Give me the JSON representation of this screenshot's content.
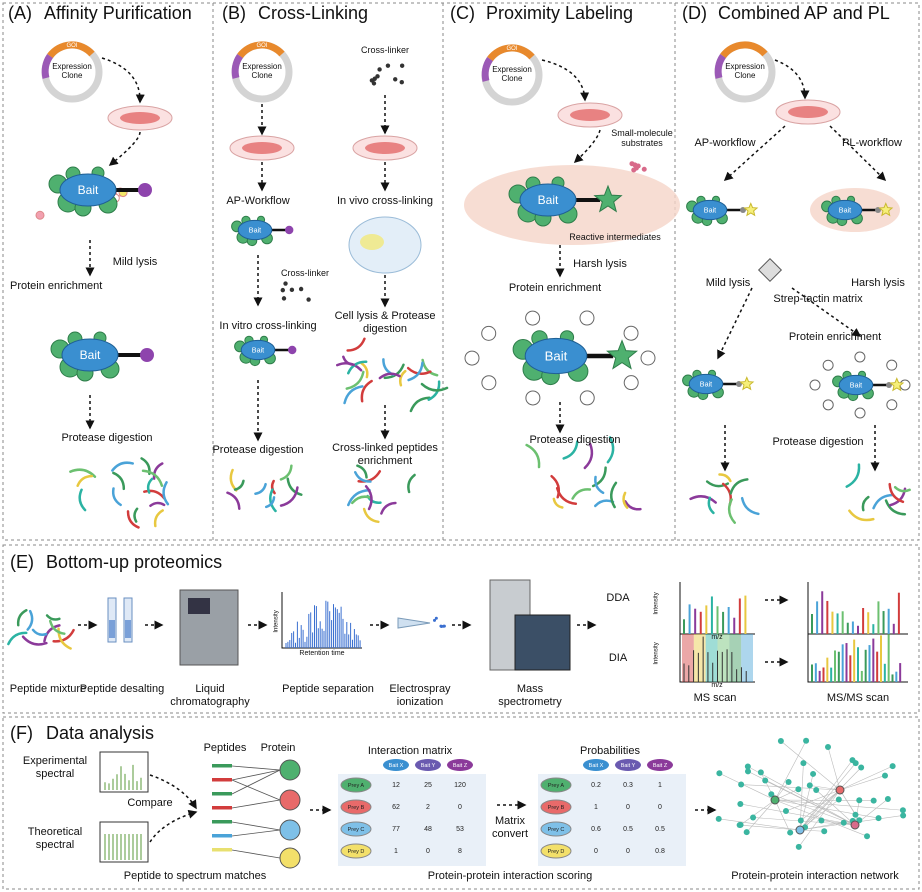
{
  "panel_a": {
    "label": "(A)",
    "title": "Affinity Purification",
    "goi": "GOI",
    "clone": "Expression Clone",
    "bait": "Bait",
    "lysis": "Mild lysis",
    "enrichment": "Protein enrichment",
    "digestion": "Protease digestion"
  },
  "panel_b": {
    "label": "(B)",
    "title": "Cross-Linking",
    "goi": "GOI",
    "clone": "Expression Clone",
    "cross_linker": "Cross-linker",
    "ap_workflow": "AP-Workflow",
    "bait": "Bait",
    "in_vitro": "In vitro cross-linking",
    "in_vivo": "In vivo cross-linking",
    "lysis": "Cell lysis & Protease digestion",
    "digestion": "Protease digestion",
    "enrichment": "Cross-linked peptides enrichment"
  },
  "panel_c": {
    "label": "(C)",
    "title": "Proximity Labeling",
    "goi": "GOI",
    "clone": "Expression Clone",
    "substrates": "Small-molecule substrates",
    "bait": "Bait",
    "intermediates": "Reactive intermediates",
    "lysis": "Harsh lysis",
    "enrichment": "Protein enrichment",
    "digestion": "Protease digestion"
  },
  "panel_d": {
    "label": "(D)",
    "title": "Combined AP and PL",
    "clone": "Expression Clone",
    "ap_workflow": "AP-workflow",
    "pl_workflow": "PL-workflow",
    "bait": "Bait",
    "mild_lysis": "Mild lysis",
    "harsh_lysis": "Harsh lysis",
    "matrix": "Strep-tactin matrix",
    "enrichment": "Protein enrichment",
    "digestion": "Protease digestion"
  },
  "panel_e": {
    "label": "(E)",
    "title": "Bottom-up proteomics",
    "steps": [
      "Peptide mixture",
      "Peptide desalting",
      "Liquid chromatography",
      "Peptide separation",
      "Electrospray ionization",
      "Mass spectrometry"
    ],
    "intensity": "Intensity",
    "retention": "Retention time",
    "mz": "m/z",
    "dda": "DDA",
    "dia": "DIA",
    "ms_scan": "MS scan",
    "msms_scan": "MS/MS scan"
  },
  "panel_f": {
    "label": "(F)",
    "title": "Data analysis",
    "experimental": "Experimental spectral",
    "theoretical": "Theoretical spectral",
    "compare": "Compare",
    "peptides": "Peptides",
    "protein": "Protein",
    "psm": "Peptide to spectrum matches",
    "interaction_matrix": {
      "title": "Interaction matrix",
      "columns": [
        "Bait X",
        "Bait Y",
        "Bait Z"
      ],
      "rows": [
        {
          "name": "Prey A",
          "values": [
            12,
            25,
            120
          ]
        },
        {
          "name": "Prey B",
          "values": [
            62,
            2,
            0
          ]
        },
        {
          "name": "Prey C",
          "values": [
            77,
            48,
            53
          ]
        },
        {
          "name": "Prey D",
          "values": [
            1,
            0,
            8
          ]
        }
      ]
    },
    "convert": "Matrix convert",
    "probabilities": {
      "title": "Probabilities",
      "columns": [
        "Bait X",
        "Bait Y",
        "Bait Z"
      ],
      "rows": [
        {
          "name": "Prey A",
          "values": [
            0.2,
            0.3,
            1
          ]
        },
        {
          "name": "Prey B",
          "values": [
            1,
            0,
            0
          ]
        },
        {
          "name": "Prey C",
          "values": [
            0.6,
            0.5,
            0.5
          ]
        },
        {
          "name": "Prey D",
          "values": [
            0,
            0,
            0.8
          ]
        }
      ]
    },
    "scoring": "Protein-protein interaction scoring",
    "network": "Protein-protein interaction network"
  }
}
